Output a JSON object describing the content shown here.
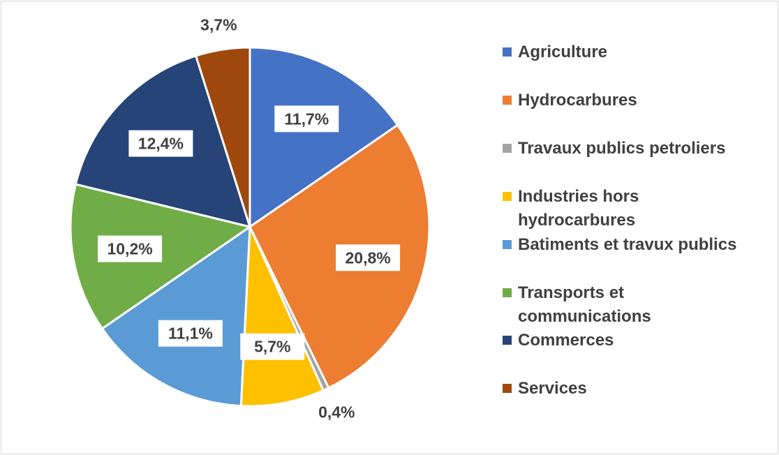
{
  "chart_data": {
    "type": "pie",
    "title": "",
    "legend_position": "right",
    "start_angle_deg": 0,
    "direction": "clockwise",
    "slices": [
      {
        "name": "Agriculture",
        "value": 11.7,
        "label": "11,7%",
        "color": "#4472c4",
        "label_box": true
      },
      {
        "name": "Hydrocarbures",
        "value": 20.8,
        "label": "20,8%",
        "color": "#ed7d31",
        "label_box": true
      },
      {
        "name": "Travaux publics petroliers",
        "value": 0.4,
        "label": "0,4%",
        "color": "#a5a5a5",
        "label_box": false
      },
      {
        "name": "Industries hors hydrocarbures",
        "value": 5.7,
        "label": "5,7%",
        "color": "#ffc000",
        "label_box": true
      },
      {
        "name": "Batiments et travux publics",
        "value": 11.1,
        "label": "11,1%",
        "color": "#5b9bd5",
        "label_box": true
      },
      {
        "name": "Transports et communications",
        "value": 10.2,
        "label": "10,2%",
        "color": "#70ad47",
        "label_box": true
      },
      {
        "name": "Commerces",
        "value": 12.4,
        "label": "12,4%",
        "color": "#264478",
        "label_box": true
      },
      {
        "name": "Services",
        "value": 3.7,
        "label": "3,7%",
        "color": "#9e480e",
        "label_box": false
      }
    ]
  },
  "legend": {
    "items": [
      {
        "label": "Agriculture",
        "color": "#4472c4"
      },
      {
        "label": "Hydrocarbures",
        "color": "#ed7d31"
      },
      {
        "label": "Travaux publics petroliers",
        "color": "#a5a5a5"
      },
      {
        "label": "Industries hors\nhydrocarbures",
        "color": "#ffc000"
      },
      {
        "label": "Batiments et travux publics",
        "color": "#5b9bd5"
      },
      {
        "label": "Transports et\ncommunications",
        "color": "#70ad47"
      },
      {
        "label": "Commerces",
        "color": "#264478"
      },
      {
        "label": "Services",
        "color": "#9e480e"
      }
    ]
  }
}
